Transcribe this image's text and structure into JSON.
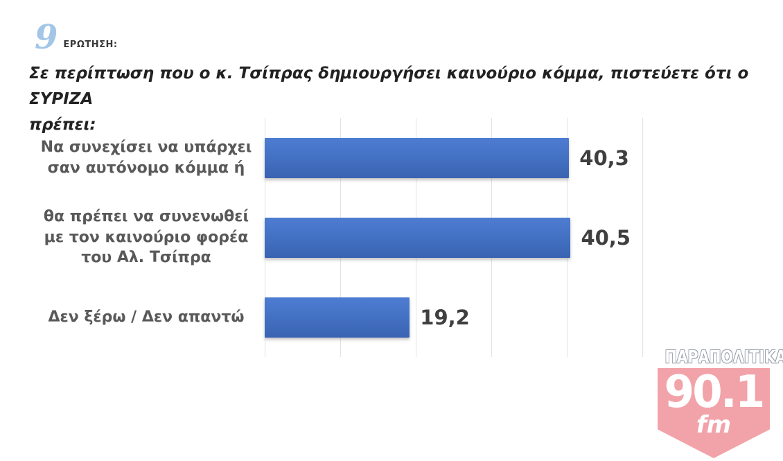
{
  "header": {
    "question_number": "9",
    "question_label": "ΕΡΩΤΗΣΗ:"
  },
  "title": {
    "line1": "Σε περίπτωση που ο κ. Τσίπρας δημιουργήσει καινούριο κόμμα, πιστεύετε ότι ο ΣΥΡΙΖΑ",
    "line2": "πρέπει:"
  },
  "chart_data": {
    "type": "bar",
    "orientation": "horizontal",
    "categories": [
      "Να συνεχίσει να υπάρχει σαν αυτόνομο κόμμα ή",
      "θα πρέπει να συνενωθεί με τον καινούριο φορέα του Αλ. Τσίπρα",
      "Δεν ξέρω / Δεν απαντώ"
    ],
    "values": [
      40.3,
      40.5,
      19.2
    ],
    "value_labels": [
      "40,3",
      "40,5",
      "19,2"
    ],
    "xlim": [
      0,
      50
    ],
    "gridline_interval": 10,
    "grid": true,
    "legend": false,
    "bar_color": "#4472c4",
    "bar_color_light": "#4d7cd2",
    "bar_color_dark": "#3a63b2",
    "category_label_color": "#595959",
    "value_label_color": "#3f3f3f"
  },
  "logo": {
    "station_name": "ΠΑΡΑΠΟΛΙΤΙΚΑ",
    "frequency": "90.1",
    "band": "fm",
    "badge_color": "#f2a3a9"
  }
}
